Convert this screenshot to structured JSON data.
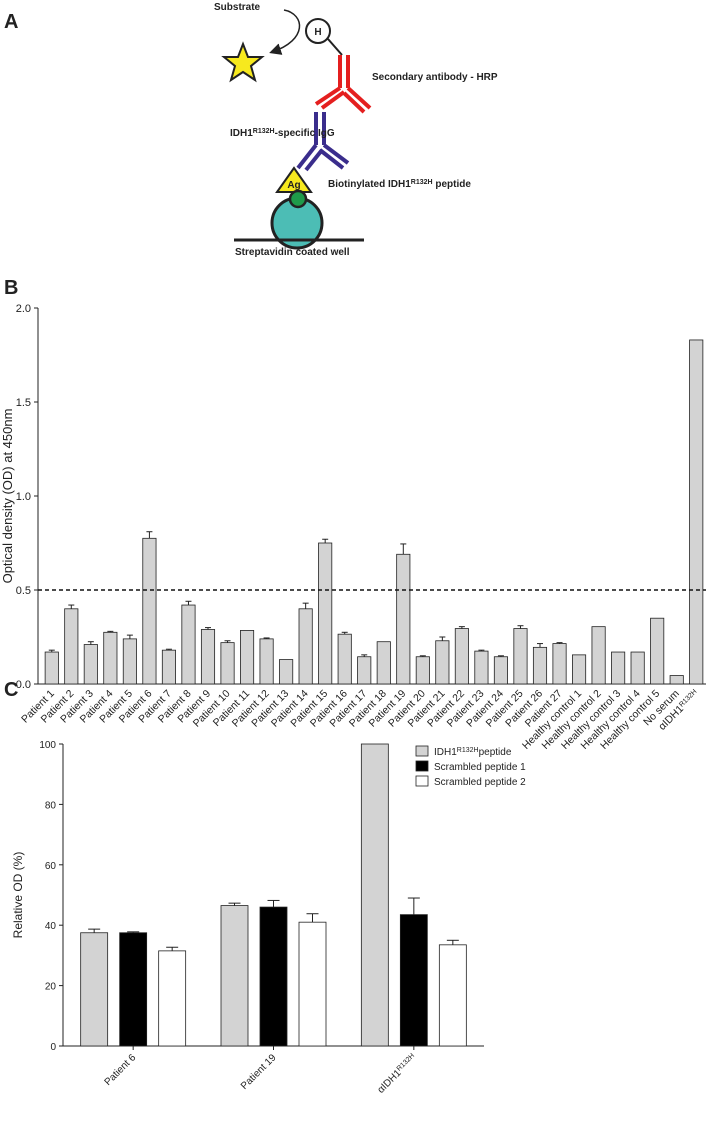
{
  "panel_labels": {
    "a": "A",
    "b": "B",
    "c": "C"
  },
  "diagram": {
    "substrate": "Substrate",
    "hrp_label": "H",
    "secondary": "Secondary antibody - HRP",
    "igg": {
      "text": "IDH1",
      "sup": "R132H",
      "rest": "-specific IgG"
    },
    "antigen": "Ag",
    "peptide": {
      "text": "Biotinylated IDH1",
      "sup": "R132H",
      "rest": " peptide"
    },
    "well": "Streptavidin coated well"
  },
  "chart_data": [
    {
      "type": "bar",
      "y_label": "Optical density (OD) at 450nm",
      "categories": [
        "Patient 1",
        "Patient 2",
        "Patient 3",
        "Patient 4",
        "Patient 5",
        "Patient 6",
        "Patient 7",
        "Patient 8",
        "Patient 9",
        "Patient 10",
        "Patient 11",
        "Patient 12",
        "Patient 13",
        "Patient 14",
        "Patient 15",
        "Patient 16",
        "Patient 17",
        "Patient 18",
        "Patient 19",
        "Patient 20",
        "Patient 21",
        "Patient 22",
        "Patient 23",
        "Patient 24",
        "Patient 25",
        "Patient 26",
        "Patient 27",
        "Healthy control 1",
        "Healthy control 2",
        "Healthy control 3",
        "Healthy control 4",
        "Healthy control 5",
        "No serum",
        {
          "text": "αIDH1",
          "sup": "R132H"
        }
      ],
      "values": [
        0.17,
        0.4,
        0.21,
        0.275,
        0.24,
        0.775,
        0.18,
        0.42,
        0.29,
        0.22,
        0.285,
        0.24,
        0.13,
        0.4,
        0.75,
        0.265,
        0.145,
        0.225,
        0.69,
        0.145,
        0.23,
        0.295,
        0.175,
        0.145,
        0.295,
        0.195,
        0.215,
        0.155,
        0.305,
        0.17,
        0.17,
        0.35,
        0.045,
        1.83
      ],
      "errors": [
        0.01,
        0.02,
        0.015,
        0.005,
        0.02,
        0.035,
        0.005,
        0.02,
        0.01,
        0.01,
        null,
        0.005,
        null,
        0.03,
        0.02,
        0.01,
        0.01,
        null,
        0.055,
        0.005,
        0.02,
        0.01,
        0.005,
        0.005,
        0.015,
        0.02,
        0.005,
        null,
        null,
        null,
        null,
        null,
        null,
        null
      ],
      "color": "#d3d3d3",
      "threshold": 0.5,
      "ylim": [
        0,
        2
      ],
      "yticks": [
        {
          "value": 0,
          "label": "0.0"
        },
        {
          "value": 0.5,
          "label": "0.5"
        },
        {
          "value": 1,
          "label": "1.0"
        },
        {
          "value": 1.5,
          "label": "1.5"
        },
        {
          "value": 2,
          "label": "2.0"
        }
      ]
    },
    {
      "type": "grouped_bar",
      "y_label": "Relative OD (%)",
      "categories": [
        "Patient 6",
        "Patient 19",
        {
          "text": "αIDH1",
          "sup": "R132H"
        }
      ],
      "series": [
        {
          "name": {
            "text": "IDH1",
            "sup": "R132H",
            "rest": "peptide"
          },
          "color": "#d3d3d3",
          "values": [
            37.5,
            46.5,
            100
          ],
          "errors": [
            1.2,
            0.8,
            null
          ]
        },
        {
          "name": "Scrambled peptide 1",
          "color": "#000000",
          "values": [
            37.5,
            46,
            43.5
          ],
          "errors": [
            0.3,
            2.2,
            5.5
          ]
        },
        {
          "name": "Scrambled peptide 2",
          "color": "#ffffff",
          "values": [
            31.5,
            41,
            33.5
          ],
          "errors": [
            1.2,
            2.8,
            1.5
          ]
        }
      ],
      "legend": "top-right",
      "ylim": [
        0,
        100
      ],
      "yticks": [
        0,
        20,
        40,
        60,
        80,
        100
      ]
    }
  ]
}
